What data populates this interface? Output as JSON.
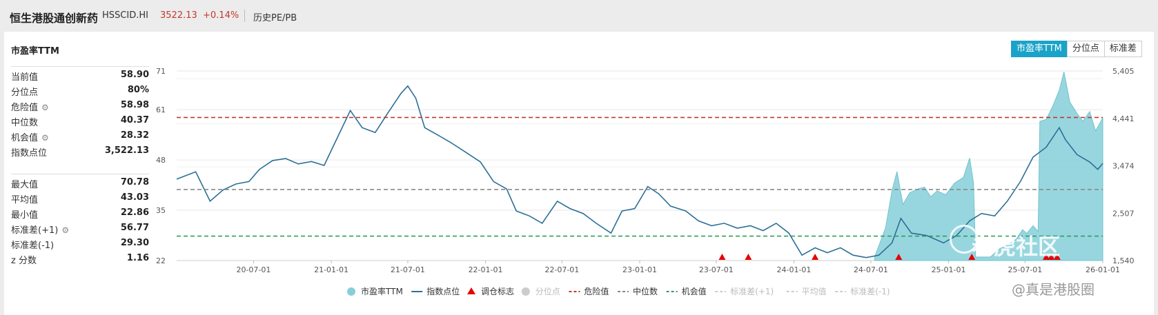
{
  "header": {
    "name": "恒生港股通创新药",
    "code": "HSSCID.HI",
    "price": "3522.13",
    "change": "+0.14%",
    "link": "历史PE/PB"
  },
  "card": {
    "title": "市盈率TTM",
    "buttons": [
      "市盈率TTM",
      "分位点",
      "标准差"
    ]
  },
  "stats_top": [
    {
      "label": "当前值",
      "value": "58.90",
      "gear": false
    },
    {
      "label": "分位点",
      "value": "80%",
      "gear": false
    },
    {
      "label": "危险值",
      "value": "58.98",
      "gear": true
    },
    {
      "label": "中位数",
      "value": "40.37",
      "gear": false
    },
    {
      "label": "机会值",
      "value": "28.32",
      "gear": true
    },
    {
      "label": "指数点位",
      "value": "3,522.13",
      "gear": false
    }
  ],
  "stats_bottom": [
    {
      "label": "最大值",
      "value": "70.78",
      "gear": false
    },
    {
      "label": "平均值",
      "value": "43.03",
      "gear": false
    },
    {
      "label": "最小值",
      "value": "22.86",
      "gear": false
    },
    {
      "label": "标准差(+1)",
      "value": "56.77",
      "gear": true
    },
    {
      "label": "标准差(-1)",
      "value": "29.30",
      "gear": false
    },
    {
      "label": "z 分数",
      "value": "1.16",
      "gear": false
    }
  ],
  "watermark": {
    "brand": "老虎社区",
    "handle": "@真是港股圈"
  },
  "colors": {
    "pe_fill": "#86cfd9",
    "index_line": "#2a6f97",
    "danger": "#c0392b",
    "median": "#888888",
    "chance": "#2e9e5b",
    "accent": "#1aa3c9"
  },
  "chart_data": {
    "type": "line",
    "title": "市盈率TTM",
    "x_ticks": [
      "20-07-01",
      "21-01-01",
      "21-07-01",
      "22-01-01",
      "22-07-01",
      "23-01-01",
      "23-07-01",
      "24-01-01",
      "24-07-01",
      "25-01-01",
      "25-07-01",
      "26-01-01"
    ],
    "y_left_ticks": [
      "71",
      "61",
      "48",
      "35",
      "22"
    ],
    "y_right_ticks": [
      "5,405",
      "4,441",
      "3,474",
      "2,507",
      "1,540"
    ],
    "y_left_range": [
      22,
      71
    ],
    "y_right_range": [
      1540,
      5405
    ],
    "reference_lines": [
      {
        "name": "危险值",
        "value": 58.98,
        "color": "#c0392b"
      },
      {
        "name": "中位数",
        "value": 40.37,
        "color": "#888888"
      },
      {
        "name": "机会值",
        "value": 28.32,
        "color": "#2e9e5b"
      }
    ],
    "series": [
      {
        "name": "市盈率TTM",
        "kind": "area",
        "axis": "left",
        "points": [
          [
            "24-07-10",
            22.9
          ],
          [
            "24-08-05",
            30.5
          ],
          [
            "24-08-20",
            40.0
          ],
          [
            "24-09-01",
            45.0
          ],
          [
            "24-09-15",
            36.5
          ],
          [
            "24-10-01",
            39.5
          ],
          [
            "24-10-20",
            40.5
          ],
          [
            "24-11-05",
            41.0
          ],
          [
            "24-11-20",
            38.5
          ],
          [
            "24-12-05",
            40.0
          ],
          [
            "24-12-25",
            39.0
          ],
          [
            "25-01-15",
            42.0
          ],
          [
            "25-02-05",
            43.5
          ],
          [
            "25-02-20",
            48.5
          ],
          [
            "25-03-01",
            42.0
          ],
          [
            "25-03-06",
            22.9
          ],
          [
            "25-04-10",
            22.9
          ],
          [
            "25-05-01",
            25.0
          ],
          [
            "25-05-20",
            26.0
          ],
          [
            "25-06-10",
            27.5
          ],
          [
            "25-06-25",
            30.0
          ],
          [
            "25-07-05",
            29.0
          ],
          [
            "25-07-20",
            31.0
          ],
          [
            "25-08-01",
            29.5
          ],
          [
            "25-08-05",
            58.0
          ],
          [
            "25-08-20",
            58.5
          ],
          [
            "25-09-05",
            62.0
          ],
          [
            "25-09-20",
            66.0
          ],
          [
            "25-10-01",
            70.78
          ],
          [
            "25-10-15",
            63.0
          ],
          [
            "25-11-01",
            60.0
          ],
          [
            "25-11-15",
            58.0
          ],
          [
            "25-12-01",
            60.5
          ],
          [
            "25-12-15",
            55.5
          ],
          [
            "26-01-01",
            58.9
          ]
        ]
      },
      {
        "name": "指数点位",
        "kind": "line",
        "axis": "right",
        "points": [
          [
            "20-01-01",
            3200
          ],
          [
            "20-02-15",
            3350
          ],
          [
            "20-03-20",
            2750
          ],
          [
            "20-04-20",
            2980
          ],
          [
            "20-05-20",
            3100
          ],
          [
            "20-06-20",
            3150
          ],
          [
            "20-07-15",
            3400
          ],
          [
            "20-08-15",
            3580
          ],
          [
            "20-09-15",
            3620
          ],
          [
            "20-10-15",
            3510
          ],
          [
            "20-11-15",
            3560
          ],
          [
            "20-12-15",
            3480
          ],
          [
            "21-01-10",
            3950
          ],
          [
            "21-02-15",
            4600
          ],
          [
            "21-03-15",
            4250
          ],
          [
            "21-04-15",
            4150
          ],
          [
            "21-05-15",
            4550
          ],
          [
            "21-06-15",
            4950
          ],
          [
            "21-07-01",
            5100
          ],
          [
            "21-07-20",
            4850
          ],
          [
            "21-08-10",
            4250
          ],
          [
            "21-09-10",
            4100
          ],
          [
            "21-10-10",
            3950
          ],
          [
            "21-11-15",
            3750
          ],
          [
            "21-12-20",
            3550
          ],
          [
            "22-01-20",
            3150
          ],
          [
            "22-02-20",
            3000
          ],
          [
            "22-03-15",
            2550
          ],
          [
            "22-04-15",
            2450
          ],
          [
            "22-05-15",
            2300
          ],
          [
            "22-06-20",
            2750
          ],
          [
            "22-07-20",
            2600
          ],
          [
            "22-08-20",
            2500
          ],
          [
            "22-09-20",
            2300
          ],
          [
            "22-10-25",
            2100
          ],
          [
            "22-11-20",
            2550
          ],
          [
            "22-12-20",
            2600
          ],
          [
            "23-01-20",
            3050
          ],
          [
            "23-02-15",
            2900
          ],
          [
            "23-03-15",
            2650
          ],
          [
            "23-04-20",
            2550
          ],
          [
            "23-05-20",
            2350
          ],
          [
            "23-06-20",
            2250
          ],
          [
            "23-07-20",
            2300
          ],
          [
            "23-08-20",
            2200
          ],
          [
            "23-09-20",
            2250
          ],
          [
            "23-10-20",
            2150
          ],
          [
            "23-11-20",
            2300
          ],
          [
            "23-12-20",
            2100
          ],
          [
            "24-01-20",
            1650
          ],
          [
            "24-02-20",
            1800
          ],
          [
            "24-03-20",
            1700
          ],
          [
            "24-04-20",
            1800
          ],
          [
            "24-05-20",
            1650
          ],
          [
            "24-06-20",
            1600
          ],
          [
            "24-07-20",
            1650
          ],
          [
            "24-08-20",
            1900
          ],
          [
            "24-09-10",
            2400
          ],
          [
            "24-10-05",
            2100
          ],
          [
            "24-11-10",
            2050
          ],
          [
            "24-12-20",
            1900
          ],
          [
            "25-01-20",
            2050
          ],
          [
            "25-02-20",
            2350
          ],
          [
            "25-03-20",
            2500
          ],
          [
            "25-04-20",
            2450
          ],
          [
            "25-05-20",
            2750
          ],
          [
            "25-06-20",
            3150
          ],
          [
            "25-07-20",
            3650
          ],
          [
            "25-08-20",
            3850
          ],
          [
            "25-09-20",
            4250
          ],
          [
            "25-10-05",
            4000
          ],
          [
            "25-11-01",
            3700
          ],
          [
            "25-12-01",
            3550
          ],
          [
            "25-12-20",
            3400
          ],
          [
            "26-01-01",
            3522.13
          ]
        ]
      }
    ],
    "rebalance_marks": [
      "23-07-15",
      "23-09-15",
      "24-02-20",
      "24-09-05",
      "25-02-25",
      "25-08-20",
      "25-09-01",
      "25-09-15"
    ],
    "legend": [
      {
        "label": "市盈率TTM",
        "symbol": "dot",
        "color": "#86cfd9",
        "active": true
      },
      {
        "label": "指数点位",
        "symbol": "line",
        "color": "#2a6f97",
        "active": true
      },
      {
        "label": "调仓标志",
        "symbol": "triangle",
        "color": "#e60000",
        "active": true
      },
      {
        "label": "分位点",
        "symbol": "dot",
        "color": "#cccccc",
        "active": false
      },
      {
        "label": "危险值",
        "symbol": "dash",
        "color": "#c0392b",
        "active": true
      },
      {
        "label": "中位数",
        "symbol": "dash",
        "color": "#888888",
        "active": true
      },
      {
        "label": "机会值",
        "symbol": "dash",
        "color": "#2e9e5b",
        "active": true
      },
      {
        "label": "标准差(+1)",
        "symbol": "dash",
        "color": "#cccccc",
        "active": false
      },
      {
        "label": "平均值",
        "symbol": "dash",
        "color": "#cccccc",
        "active": false
      },
      {
        "label": "标准差(-1)",
        "symbol": "dash",
        "color": "#cccccc",
        "active": false
      }
    ],
    "legend_position": "bottom",
    "grid": true
  }
}
